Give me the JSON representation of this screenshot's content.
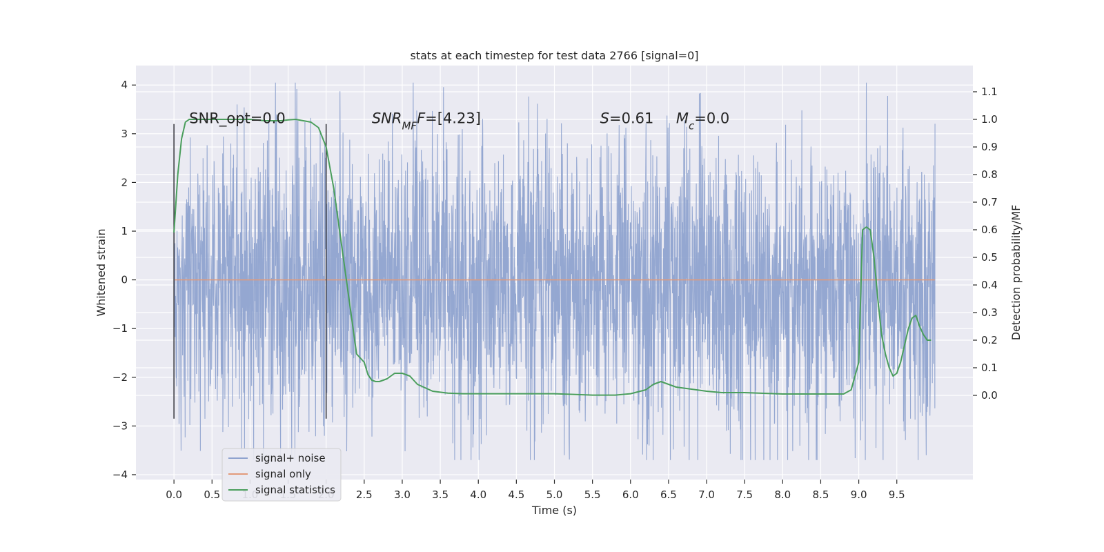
{
  "chart_data": {
    "type": "line",
    "title": "stats at each timestep for test data 2766 [signal=0]",
    "xlabel": "Time (s)",
    "ylabel": "Whitened strain",
    "y2label": "Detection probability/MF",
    "xlim": [
      -0.5,
      10.5
    ],
    "ylim": [
      -4.1,
      4.4
    ],
    "y2lim": [
      -0.305,
      1.195
    ],
    "grid": true,
    "legend_position": "lower-left",
    "x_ticks": [
      0.0,
      0.5,
      1.0,
      1.5,
      2.0,
      2.5,
      3.0,
      3.5,
      4.0,
      4.5,
      5.0,
      5.5,
      6.0,
      6.5,
      7.0,
      7.5,
      8.0,
      8.5,
      9.0,
      9.5
    ],
    "x_tick_labels": [
      "0.0",
      "0.5",
      "1.0",
      "1.5",
      "2.0",
      "2.5",
      "3.0",
      "3.5",
      "4.0",
      "4.5",
      "5.0",
      "5.5",
      "6.0",
      "6.5",
      "7.0",
      "7.5",
      "8.0",
      "8.5",
      "9.0",
      "9.5"
    ],
    "y_ticks": [
      -4,
      -3,
      -2,
      -1,
      0,
      1,
      2,
      3,
      4
    ],
    "y_tick_labels": [
      "−4",
      "−3",
      "−2",
      "−1",
      "0",
      "1",
      "2",
      "3",
      "4"
    ],
    "y2_ticks": [
      0.0,
      0.1,
      0.2,
      0.3,
      0.4,
      0.5,
      0.6,
      0.7,
      0.8,
      0.9,
      1.0,
      1.1
    ],
    "y2_tick_labels": [
      "0.0",
      "0.1",
      "0.2",
      "0.3",
      "0.4",
      "0.5",
      "0.6",
      "0.7",
      "0.8",
      "0.9",
      "1.0",
      "1.1"
    ],
    "series": [
      {
        "name": "signal+ noise",
        "color": "#8fa3cf",
        "axis": "left",
        "x_range": [
          0.0,
          10.0
        ],
        "typical_band": [
          -1.6,
          1.4
        ],
        "range": [
          -3.7,
          4.05
        ]
      },
      {
        "name": "signal only",
        "color": "#e29a7a",
        "axis": "left",
        "x": [
          0.0,
          10.0
        ],
        "y": [
          0.0,
          0.0
        ]
      },
      {
        "name": "signal statistics",
        "color": "#4a9e5c",
        "axis": "right",
        "x": [
          0.0,
          0.05,
          0.1,
          0.15,
          0.2,
          0.3,
          0.5,
          0.8,
          1.0,
          1.2,
          1.4,
          1.5,
          1.6,
          1.8,
          1.9,
          2.0,
          2.1,
          2.2,
          2.3,
          2.4,
          2.5,
          2.55,
          2.6,
          2.65,
          2.7,
          2.8,
          2.9,
          3.0,
          3.1,
          3.2,
          3.4,
          3.6,
          3.8,
          4.0,
          4.5,
          5.0,
          5.5,
          5.8,
          6.0,
          6.2,
          6.3,
          6.4,
          6.5,
          6.6,
          7.0,
          7.2,
          7.5,
          8.0,
          8.5,
          8.8,
          8.9,
          9.0,
          9.05,
          9.1,
          9.15,
          9.2,
          9.25,
          9.3,
          9.35,
          9.4,
          9.45,
          9.5,
          9.55,
          9.6,
          9.65,
          9.7,
          9.75,
          9.8,
          9.85,
          9.9,
          9.95
        ],
        "y": [
          0.59,
          0.8,
          0.93,
          0.99,
          1.0,
          1.0,
          1.0,
          1.0,
          1.0,
          0.995,
          0.995,
          0.998,
          1.0,
          0.99,
          0.97,
          0.9,
          0.75,
          0.55,
          0.35,
          0.15,
          0.12,
          0.075,
          0.055,
          0.05,
          0.05,
          0.06,
          0.08,
          0.08,
          0.07,
          0.04,
          0.015,
          0.008,
          0.006,
          0.006,
          0.006,
          0.006,
          0.001,
          0.001,
          0.006,
          0.02,
          0.04,
          0.05,
          0.04,
          0.03,
          0.015,
          0.01,
          0.01,
          0.005,
          0.005,
          0.005,
          0.02,
          0.12,
          0.6,
          0.61,
          0.6,
          0.5,
          0.35,
          0.22,
          0.15,
          0.1,
          0.07,
          0.08,
          0.12,
          0.18,
          0.24,
          0.28,
          0.29,
          0.25,
          0.22,
          0.2,
          0.2
        ]
      }
    ],
    "vlines": [
      {
        "x": 0.0,
        "y": [
          -2.85,
          3.2
        ]
      },
      {
        "x": 2.0,
        "y": [
          -2.85,
          3.2
        ]
      }
    ],
    "annotations": [
      {
        "x": 0.2,
        "y": 3.2,
        "parts": [
          {
            "t": "SNR_opt=0.0",
            "i": false
          }
        ]
      },
      {
        "x": 2.6,
        "y": 3.2,
        "parts": [
          {
            "t": "SNR",
            "i": true
          },
          {
            "t": "MF",
            "i": true,
            "sub": true
          },
          {
            "t": "F",
            "i": true
          },
          {
            "t": "=[4.23]",
            "i": false
          }
        ]
      },
      {
        "x": 5.6,
        "y": 3.2,
        "parts": [
          {
            "t": "S",
            "i": true
          },
          {
            "t": "=0.61",
            "i": false
          }
        ]
      },
      {
        "x": 6.6,
        "y": 3.2,
        "parts": [
          {
            "t": "M",
            "i": true
          },
          {
            "t": "c",
            "i": true,
            "sub": true
          },
          {
            "t": "=0.0",
            "i": false
          }
        ]
      }
    ],
    "colors": {
      "axes_bg": "#eaeaf2",
      "grid": "#ffffff",
      "text": "#262626",
      "vline": "#3d3d44"
    }
  }
}
